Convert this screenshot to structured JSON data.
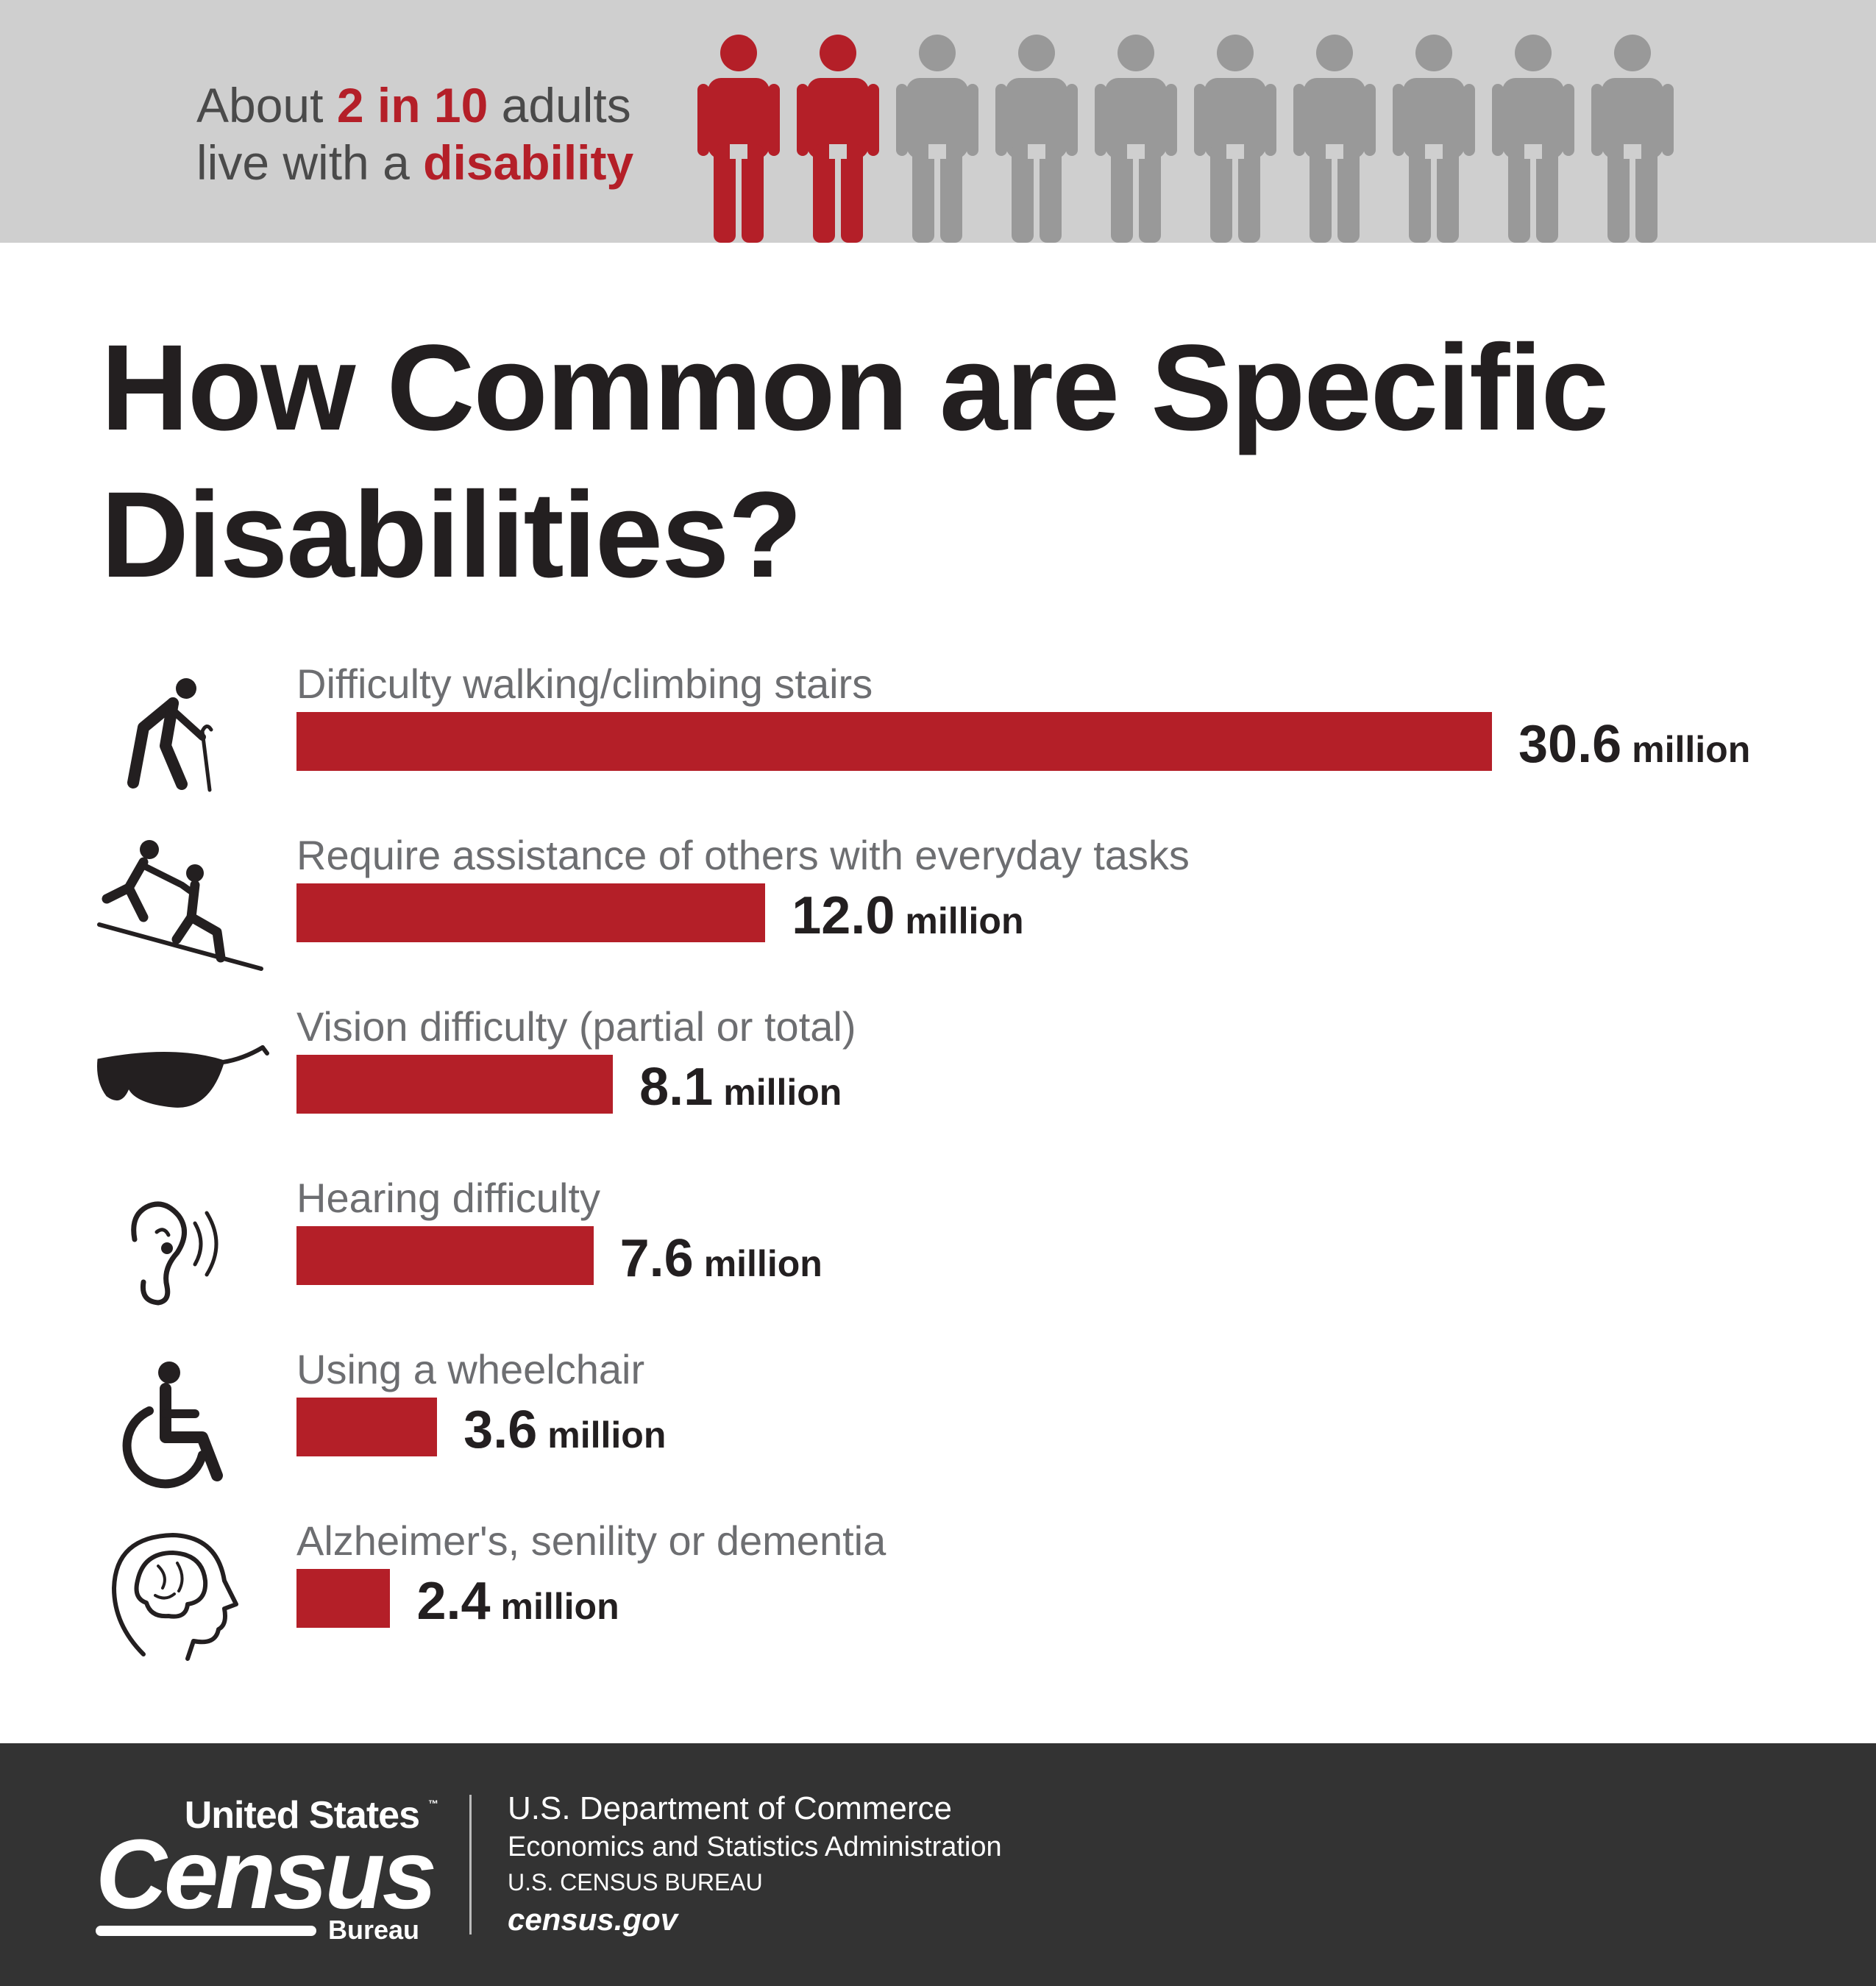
{
  "banner": {
    "text_pre": "About ",
    "text_highlight": "2 in 10",
    "text_mid": " adults",
    "text_line2_pre": "live with a ",
    "text_line2_highlight": "disability",
    "people_total": 10,
    "people_highlighted": 2,
    "highlight_color": "#b41f28",
    "muted_color": "#999999"
  },
  "title": "How Common are Specific Disabilities?",
  "chart_data": {
    "type": "bar",
    "orientation": "horizontal",
    "categories": [
      "Difficulty walking/climbing stairs",
      "Require assistance of others with everyday tasks",
      "Vision difficulty (partial or total)",
      "Hearing difficulty",
      "Using a wheelchair",
      "Alzheimer's, senility or dementia"
    ],
    "values": [
      30.6,
      12.0,
      8.1,
      7.6,
      3.6,
      2.4
    ],
    "value_labels": [
      "30.6",
      "12.0",
      "8.1",
      "7.6",
      "3.6",
      "2.4"
    ],
    "unit": "million",
    "icons": [
      "walking-cane-icon",
      "helping-climb-icon",
      "sunglasses-icon",
      "hearing-ear-icon",
      "wheelchair-icon",
      "head-brain-icon"
    ],
    "bar_color": "#b41f28",
    "title": "How Common are Specific Disabilities?",
    "xlim": [
      0,
      30.6
    ],
    "grid": false,
    "legend": "none"
  },
  "footer": {
    "logo_line1": "United States",
    "logo_tm": "™",
    "logo_line2": "Census",
    "logo_line3": "Bureau",
    "agency_line1": "U.S. Department of Commerce",
    "agency_line2": "Economics and Statistics Administration",
    "agency_line3": "U.S. CENSUS BUREAU",
    "agency_line4": "census.gov"
  }
}
